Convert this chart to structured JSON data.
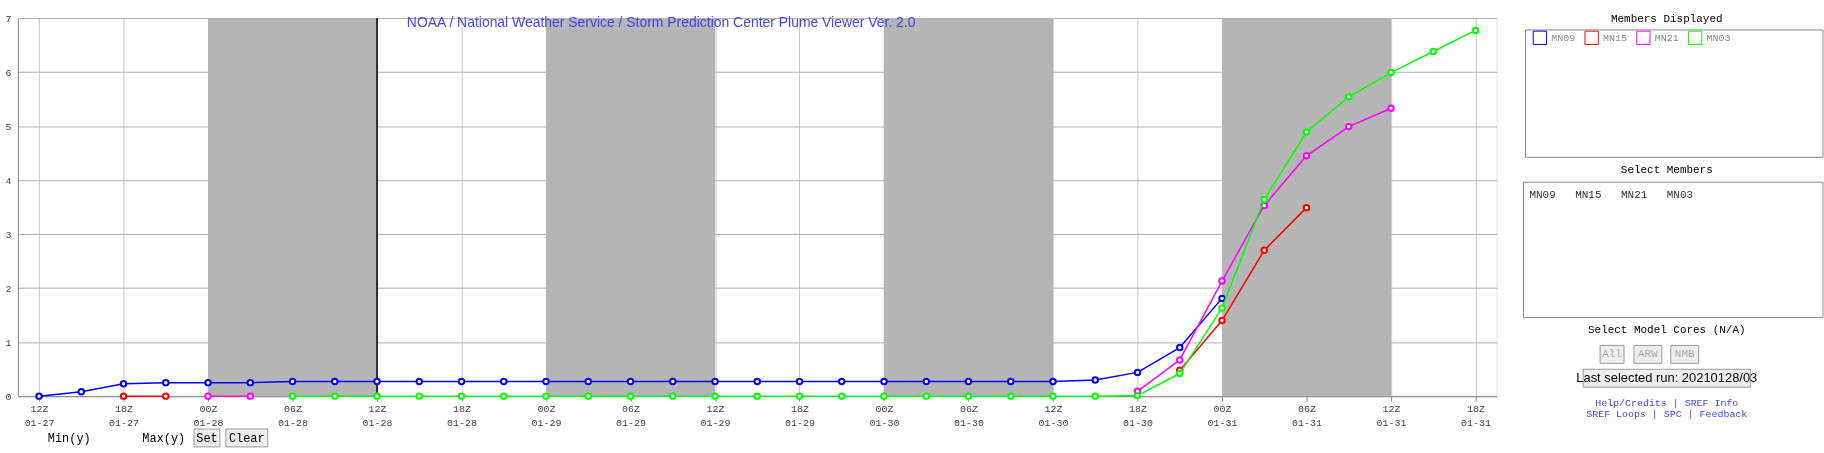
{
  "chart_data": {
    "type": "line",
    "title": "NOAA / National Weather Service / Storm Prediction Center Plume Viewer Ver. 2.0",
    "categories": [
      "12Z 01-27",
      null,
      "18Z 01-27",
      null,
      "00Z 01-28",
      null,
      "06Z 01-28",
      null,
      "12Z 01-28",
      null,
      "18Z 01-28",
      null,
      "00Z 01-29",
      null,
      "06Z 01-29",
      null,
      "12Z 01-29",
      null,
      "18Z 01-29",
      null,
      "00Z 01-30",
      null,
      "06Z 01-30",
      null,
      "12Z 01-30",
      null,
      "18Z 01-30",
      null,
      "00Z 01-31",
      null,
      "06Z 01-31",
      null,
      "12Z 01-31",
      null,
      "18Z 01-31"
    ],
    "ylim": [
      0,
      7
    ],
    "yticks": [
      0,
      1,
      2,
      3,
      4,
      5,
      6,
      7
    ],
    "grid": true,
    "marker": "circle",
    "line_style": "solid",
    "legend": "right",
    "legend_title": "Members Displayed",
    "series": [
      {
        "name": "MN09",
        "color": "#0000ff",
        "values": [
          0,
          0.08,
          0.23,
          0.25,
          0.25,
          0.25,
          0.27,
          0.27,
          0.27,
          0.27,
          0.27,
          0.27,
          0.27,
          0.27,
          0.27,
          0.27,
          0.27,
          0.27,
          0.27,
          0.27,
          0.27,
          0.27,
          0.27,
          0.27,
          0.27,
          0.3,
          0.44,
          0.9,
          1.81,
          null,
          null,
          null,
          null,
          null,
          null
        ]
      },
      {
        "name": "MN15",
        "color": "#ff0000",
        "values": [
          null,
          null,
          0,
          0,
          null,
          null,
          null,
          null,
          null,
          null,
          null,
          null,
          null,
          null,
          null,
          null,
          null,
          null,
          null,
          null,
          null,
          null,
          null,
          null,
          null,
          null,
          null,
          0.48,
          1.4,
          2.7,
          3.49,
          null,
          null,
          null,
          null
        ]
      },
      {
        "name": "MN21",
        "color": "#ff00ff",
        "values": [
          null,
          null,
          null,
          null,
          0,
          0,
          null,
          null,
          null,
          null,
          null,
          null,
          null,
          null,
          null,
          null,
          null,
          null,
          null,
          null,
          null,
          null,
          null,
          null,
          null,
          null,
          0.09,
          0.67,
          2.13,
          3.53,
          4.45,
          4.99,
          5.33,
          null,
          null
        ]
      },
      {
        "name": "MN03",
        "color": "#00ff00",
        "values": [
          null,
          null,
          null,
          null,
          null,
          null,
          0,
          0,
          0,
          0,
          0,
          0,
          0,
          0,
          0,
          0,
          0,
          0,
          0,
          0,
          0,
          0,
          0,
          0,
          0,
          0,
          0.01,
          0.42,
          1.63,
          3.64,
          4.89,
          5.54,
          5.99,
          6.38,
          6.77
        ]
      }
    ],
    "bands": [
      {
        "axis": "x",
        "from": "00Z 01-28",
        "to": "12Z 01-28",
        "color": "#b5b5b5"
      },
      {
        "axis": "x",
        "from": "00Z 01-29",
        "to": "12Z 01-29",
        "color": "#b5b5b5"
      },
      {
        "axis": "x",
        "from": "00Z 01-30",
        "to": "12Z 01-30",
        "color": "#b5b5b5"
      },
      {
        "axis": "x",
        "from": "00Z 01-31",
        "to": "12Z 01-31",
        "color": "#b5b5b5"
      }
    ],
    "ref_lines": [
      {
        "axis": "x",
        "value": "12Z 01-28",
        "color": "#000000",
        "line_style": "solid"
      }
    ],
    "annotations": [
      "Min(y)",
      "Max(y)",
      "Set",
      "Clear",
      "Select Members",
      "Select Model Cores (N/A)",
      "All",
      "ARW",
      "NMB",
      "Last selected run: 20210128/03",
      "Help/Credits | SREF Info",
      "SREF Loops | SPC | Feedback"
    ]
  }
}
